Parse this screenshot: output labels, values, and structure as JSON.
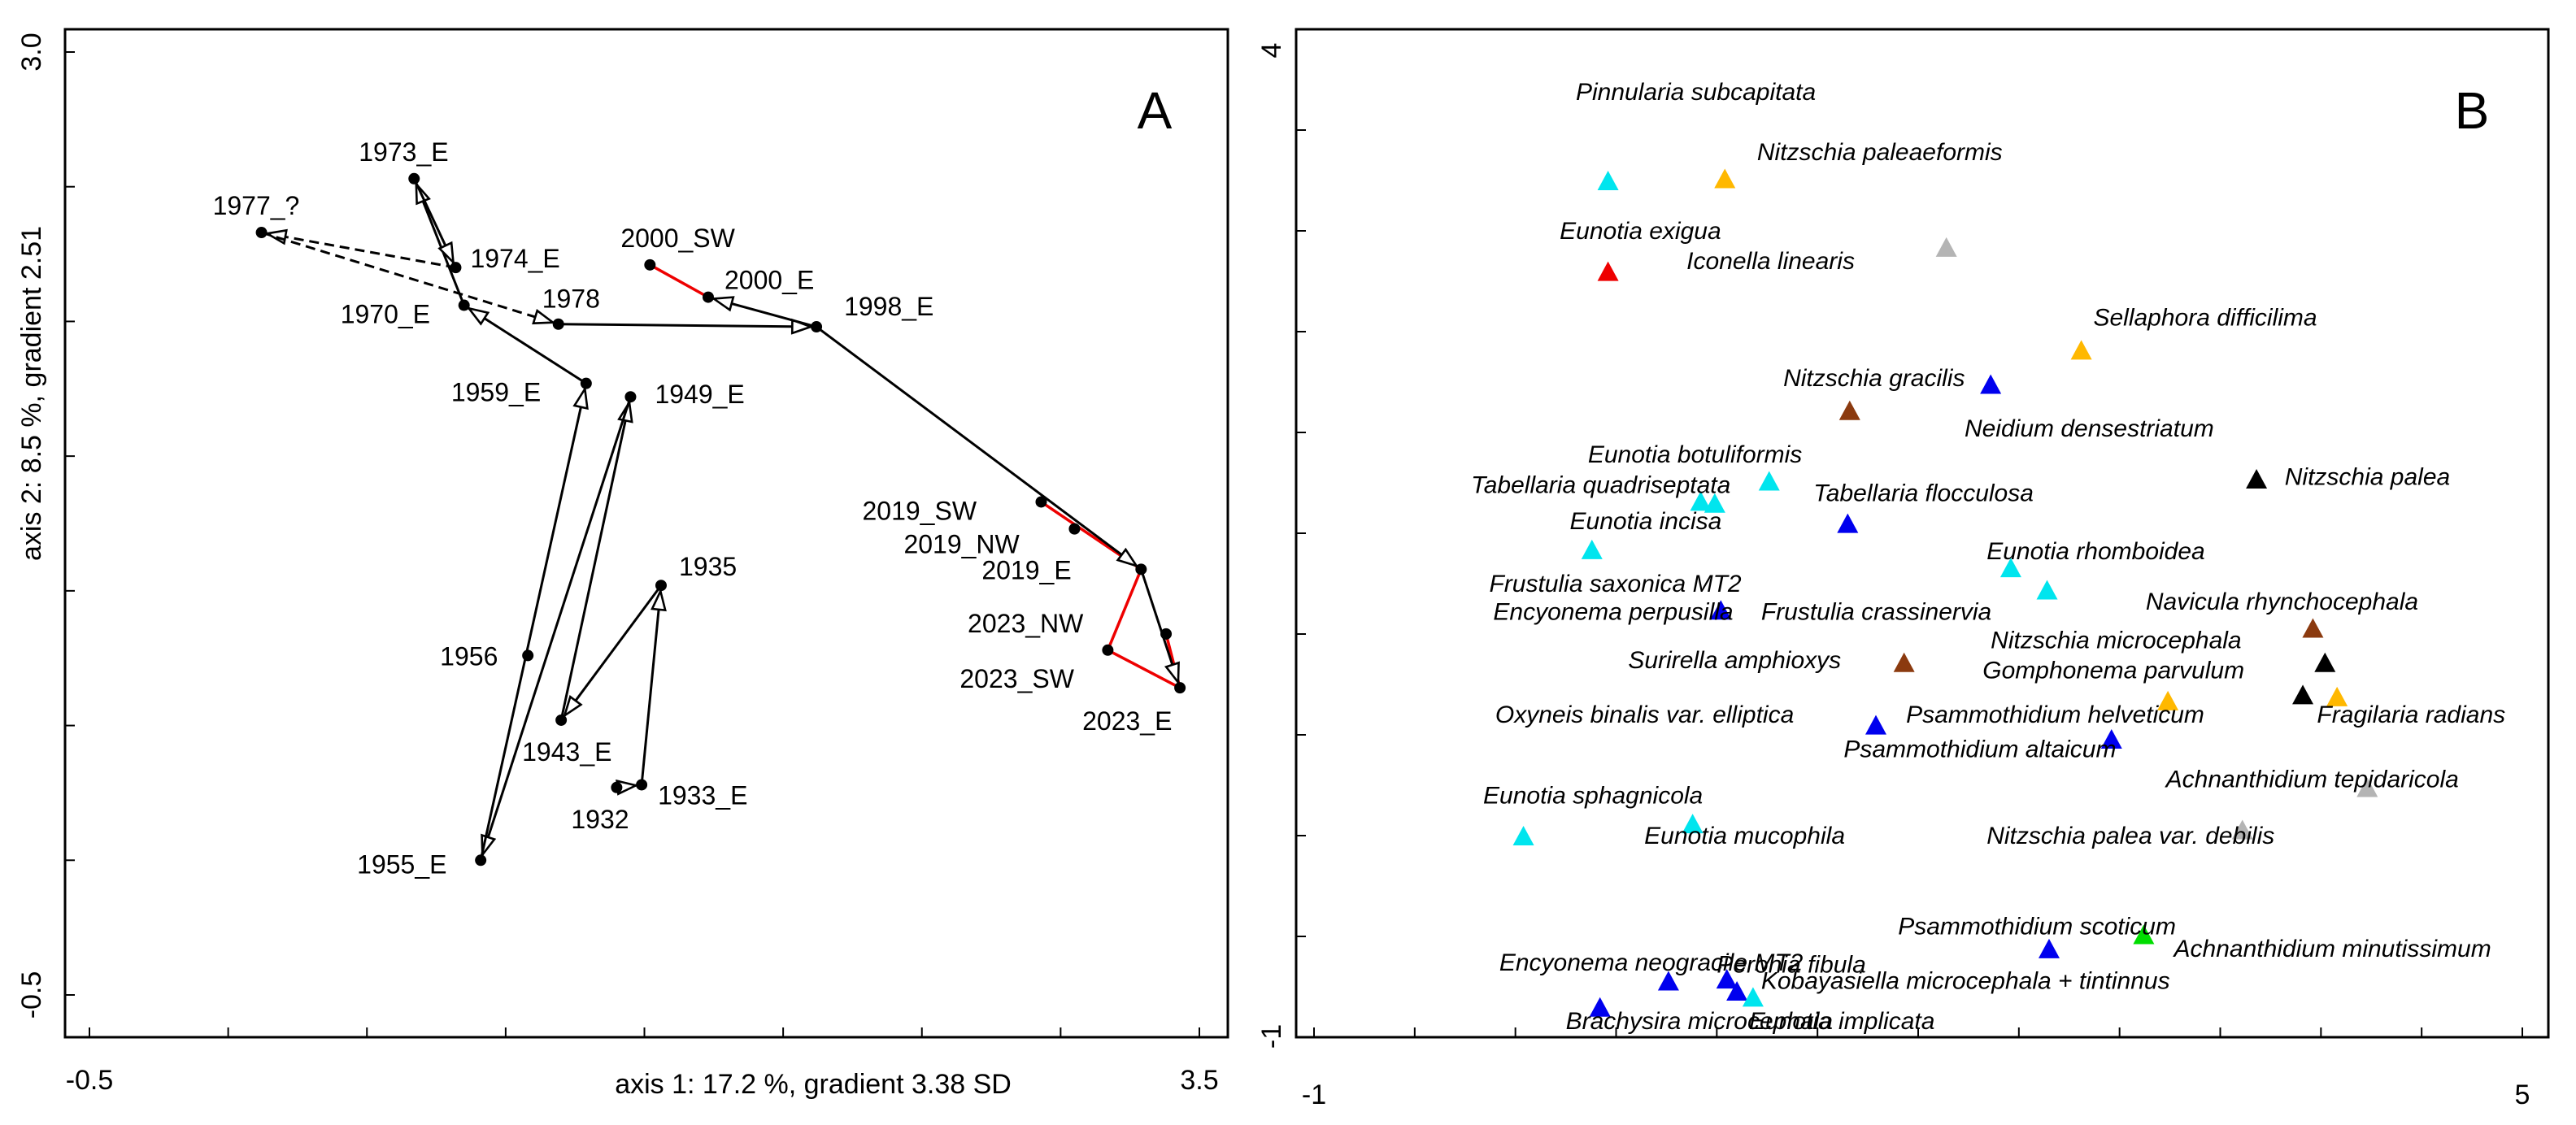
{
  "colors": {
    "cyan": "#00e5ee",
    "blue": "#0000ee",
    "orange": "#ffb800",
    "red": "#ee0000",
    "grey": "#b4b4b4",
    "brown": "#8b3a0f",
    "black": "#000000",
    "green": "#00dd00"
  },
  "chart_data": [
    {
      "type": "scatter",
      "panel": "A",
      "title": "A",
      "xlabel": "axis 1: 17.2 %, gradient 3.38 SD",
      "ylabel": "axis 2: 8.5 %, gradient 2.51",
      "xlim": [
        -0.5,
        3.5
      ],
      "ylim": [
        -0.5,
        3.0
      ],
      "xtick_labels": [
        "-0.5",
        "3.5"
      ],
      "ytick_labels": [
        "-0.5",
        "3.0"
      ],
      "points": [
        {
          "label": "1932",
          "x": 1.4,
          "y": 0.27
        },
        {
          "label": "1933_E",
          "x": 1.49,
          "y": 0.28
        },
        {
          "label": "1935",
          "x": 1.56,
          "y": 1.02
        },
        {
          "label": "1943_E",
          "x": 1.2,
          "y": 0.52
        },
        {
          "label": "1949_E",
          "x": 1.45,
          "y": 1.72
        },
        {
          "label": "1955_E",
          "x": 0.91,
          "y": 0.0
        },
        {
          "label": "1956",
          "x": 1.08,
          "y": 0.76
        },
        {
          "label": "1959_E",
          "x": 1.29,
          "y": 1.77
        },
        {
          "label": "1970_E",
          "x": 0.85,
          "y": 2.06
        },
        {
          "label": "1973_E",
          "x": 0.67,
          "y": 2.53
        },
        {
          "label": "1974_E",
          "x": 0.82,
          "y": 2.2
        },
        {
          "label": "1977_?",
          "x": 0.12,
          "y": 2.33
        },
        {
          "label": "1978",
          "x": 1.19,
          "y": 1.99
        },
        {
          "label": "1998_E",
          "x": 2.12,
          "y": 1.98
        },
        {
          "label": "2000_SW",
          "x": 1.52,
          "y": 2.21
        },
        {
          "label": "2000_E",
          "x": 1.73,
          "y": 2.09
        },
        {
          "label": "2019_SW",
          "x": 2.93,
          "y": 1.33
        },
        {
          "label": "2019_NW",
          "x": 3.05,
          "y": 1.23
        },
        {
          "label": "2019_E",
          "x": 3.29,
          "y": 1.08
        },
        {
          "label": "2023_NW",
          "x": 3.38,
          "y": 0.84
        },
        {
          "label": "2023_SW",
          "x": 3.17,
          "y": 0.78
        },
        {
          "label": "2023_E",
          "x": 3.43,
          "y": 0.64
        }
      ],
      "arrows": [
        {
          "from": "1932",
          "to": "1933_E",
          "style": "solid"
        },
        {
          "from": "1933_E",
          "to": "1935",
          "style": "solid"
        },
        {
          "from": "1935",
          "to": "1943_E",
          "style": "solid"
        },
        {
          "from": "1943_E",
          "to": "1949_E",
          "style": "solid"
        },
        {
          "from": "1949_E",
          "to": "1955_E",
          "style": "solid"
        },
        {
          "from": "1955_E",
          "to": "1959_E",
          "style": "solid"
        },
        {
          "from": "1959_E",
          "to": "1970_E",
          "style": "solid"
        },
        {
          "from": "1970_E",
          "to": "1973_E",
          "style": "solid"
        },
        {
          "from": "1973_E",
          "to": "1974_E",
          "style": "solid"
        },
        {
          "from": "1974_E",
          "to": "1977_?",
          "style": "dashed"
        },
        {
          "from": "1977_?",
          "to": "1978",
          "style": "dashed"
        },
        {
          "from": "1978",
          "to": "1998_E",
          "style": "solid"
        },
        {
          "from": "1998_E",
          "to": "2000_E",
          "style": "solid"
        },
        {
          "from": "1998_E",
          "to": "2019_E",
          "style": "solid"
        },
        {
          "from": "2019_E",
          "to": "2023_E",
          "style": "solid"
        }
      ],
      "red_links": [
        [
          "2000_SW",
          "2000_E"
        ],
        [
          "2019_SW",
          "2019_E"
        ],
        [
          "2023_NW",
          "2023_E"
        ],
        [
          "2023_SW",
          "2023_E"
        ],
        [
          "2023_SW",
          "2019_E"
        ]
      ]
    },
    {
      "type": "scatter",
      "panel": "B",
      "title": "B",
      "xlim": [
        -1,
        5
      ],
      "ylim": [
        -1,
        4
      ],
      "xtick_labels": [
        "-1",
        "5"
      ],
      "ytick_labels": [
        "-1",
        "4"
      ],
      "species": [
        {
          "name": "Pinnularia subcapitata",
          "x": 0.46,
          "y": 3.25,
          "color": "cyan"
        },
        {
          "name": "Nitzschia paleaeformis",
          "x": 1.04,
          "y": 3.26,
          "color": "orange"
        },
        {
          "name": "Eunotia exigua",
          "x": 0.46,
          "y": 2.8,
          "color": "red"
        },
        {
          "name": "Iconella linearis",
          "x": 2.14,
          "y": 2.92,
          "color": "grey"
        },
        {
          "name": "Sellaphora difficilima",
          "x": 2.81,
          "y": 2.41,
          "color": "orange"
        },
        {
          "name": "Nitzschia gracilis",
          "x": 1.66,
          "y": 2.11,
          "color": "brown"
        },
        {
          "name": "Neidium densestriatum",
          "x": 2.36,
          "y": 2.24,
          "color": "blue"
        },
        {
          "name": "Eunotia botuliformis",
          "x": 1.26,
          "y": 1.76,
          "color": "cyan"
        },
        {
          "name": "Nitzschia palea",
          "x": 3.68,
          "y": 1.77,
          "color": "black"
        },
        {
          "name": "Tabellaria quadriseptata",
          "x": 0.92,
          "y": 1.66,
          "color": "cyan"
        },
        {
          "name": "Tabellaria quadriseptata b",
          "x": 0.99,
          "y": 1.65,
          "color": "cyan"
        },
        {
          "name": "Tabellaria flocculosa",
          "x": 1.65,
          "y": 1.55,
          "color": "blue"
        },
        {
          "name": "Eunotia incisa",
          "x": 0.38,
          "y": 1.42,
          "color": "cyan"
        },
        {
          "name": "Eunotia rhomboidea",
          "x": 2.46,
          "y": 1.33,
          "color": "cyan"
        },
        {
          "name": "Frustulia saxonica MT2",
          "x": 2.64,
          "y": 1.22,
          "color": "cyan"
        },
        {
          "name": "Encyonema perpusilla",
          "x": 1.02,
          "y": 1.12,
          "color": "blue"
        },
        {
          "name": "Navicula rhynchocephala",
          "x": 3.96,
          "y": 1.03,
          "color": "brown"
        },
        {
          "name": "Surirella amphioxys",
          "x": 1.93,
          "y": 0.86,
          "color": "brown"
        },
        {
          "name": "Nitzschia microcephala",
          "x": 4.02,
          "y": 0.86,
          "color": "black"
        },
        {
          "name": "Gomphonema parvulum",
          "x": 3.24,
          "y": 0.67,
          "color": "orange"
        },
        {
          "name": "Gomphonema parvulum b",
          "x": 3.91,
          "y": 0.7,
          "color": "black"
        },
        {
          "name": "Fragilaria radians",
          "x": 4.08,
          "y": 0.69,
          "color": "orange"
        },
        {
          "name": "Oxyneis binalis var. elliptica",
          "x": 1.79,
          "y": 0.55,
          "color": "blue"
        },
        {
          "name": "Psammothidium helveticum",
          "x": 2.96,
          "y": 0.48,
          "color": "blue"
        },
        {
          "name": "Psammothidium altaicum",
          "x": 4.23,
          "y": 0.24,
          "color": "grey"
        },
        {
          "name": "Achnanthidium tepidaricola",
          "x": 3.61,
          "y": 0.03,
          "color": "grey"
        },
        {
          "name": "Eunotia sphagnicola",
          "x": 0.04,
          "y": 0.0,
          "color": "cyan"
        },
        {
          "name": "Eunotia mucophila",
          "x": 0.88,
          "y": 0.06,
          "color": "cyan"
        },
        {
          "name": "Achnanthidium minutissimum",
          "x": 3.12,
          "y": -0.49,
          "color": "green"
        },
        {
          "name": "Psammothidium scoticum",
          "x": 2.65,
          "y": -0.56,
          "color": "blue"
        },
        {
          "name": "Encyonema neogracile MT2",
          "x": 0.76,
          "y": -0.72,
          "color": "blue"
        },
        {
          "name": "Peronia fibula",
          "x": 1.05,
          "y": -0.71,
          "color": "blue"
        },
        {
          "name": "Kobayasiella microcephala + tintinnus",
          "x": 1.1,
          "y": -0.77,
          "color": "blue"
        },
        {
          "name": "Eunotia implicata",
          "x": 1.18,
          "y": -0.8,
          "color": "cyan"
        },
        {
          "name": "Brachysira microcephala",
          "x": 0.42,
          "y": -0.85,
          "color": "blue"
        }
      ],
      "text_labels": [
        {
          "text": "Pinnularia subcapitata",
          "x": 0.3,
          "y": 3.65
        },
        {
          "text": "Nitzschia paleaeformis",
          "x": 1.2,
          "y": 3.35
        },
        {
          "text": "Eunotia exigua",
          "x": 0.22,
          "y": 2.96
        },
        {
          "text": "Iconella linearis",
          "x": 0.85,
          "y": 2.81
        },
        {
          "text": "Sellaphora difficilima",
          "x": 2.87,
          "y": 2.53
        },
        {
          "text": "Nitzschia gracilis",
          "x": 1.33,
          "y": 2.23
        },
        {
          "text": "Neidium densestriatum",
          "x": 2.23,
          "y": 1.98
        },
        {
          "text": "Eunotia botuliformis",
          "x": 0.36,
          "y": 1.85
        },
        {
          "text": "Nitzschia palea",
          "x": 3.82,
          "y": 1.74
        },
        {
          "text": "Tabellaria quadriseptata",
          "x": -0.22,
          "y": 1.7
        },
        {
          "text": "Tabellaria flocculosa",
          "x": 1.48,
          "y": 1.66
        },
        {
          "text": "Eunotia incisa",
          "x": 0.27,
          "y": 1.52
        },
        {
          "text": "Eunotia rhomboidea",
          "x": 2.34,
          "y": 1.37
        },
        {
          "text": "Frustulia saxonica MT2",
          "x": -0.13,
          "y": 1.21
        },
        {
          "text": "Frustulia crassinervia",
          "x": 1.22,
          "y": 1.07
        },
        {
          "text": "Encyonema perpusilla",
          "x": -0.11,
          "y": 1.07
        },
        {
          "text": "Navicula rhynchocephala",
          "x": 3.13,
          "y": 1.12
        },
        {
          "text": "Nitzschia microcephala",
          "x": 2.36,
          "y": 0.93
        },
        {
          "text": "Surirella amphioxys",
          "x": 0.56,
          "y": 0.83
        },
        {
          "text": "Gomphonema parvulum",
          "x": 2.32,
          "y": 0.78
        },
        {
          "text": "Fragilaria radians",
          "x": 3.98,
          "y": 0.56
        },
        {
          "text": "Oxyneis binalis var. elliptica",
          "x": -0.1,
          "y": 0.56
        },
        {
          "text": "Psammothidium helveticum",
          "x": 1.94,
          "y": 0.56
        },
        {
          "text": "Psammothidium altaicum",
          "x": 1.63,
          "y": 0.39
        },
        {
          "text": "Achnanthidium tepidaricola",
          "x": 3.23,
          "y": 0.24
        },
        {
          "text": "Eunotia sphagnicola",
          "x": -0.16,
          "y": 0.16
        },
        {
          "text": "Eunotia mucophila",
          "x": 0.64,
          "y": -0.04
        },
        {
          "text": "Nitzschia palea var. debilis",
          "x": 2.34,
          "y": -0.04
        },
        {
          "text": "Psammothidium scoticum",
          "x": 1.9,
          "y": -0.49
        },
        {
          "text": "Achnanthidium minutissimum",
          "x": 3.27,
          "y": -0.6
        },
        {
          "text": "Encyonema neogracile MT2",
          "x": -0.08,
          "y": -0.67
        },
        {
          "text": "Peronia fibula",
          "x": 1.0,
          "y": -0.68
        },
        {
          "text": "Kobayasiella microcephala + tintinnus",
          "x": 1.22,
          "y": -0.76
        },
        {
          "text": "Eunotia implicata",
          "x": 1.16,
          "y": -0.96
        },
        {
          "text": "Brachysira microcephala",
          "x": 0.25,
          "y": -0.96
        }
      ]
    }
  ]
}
